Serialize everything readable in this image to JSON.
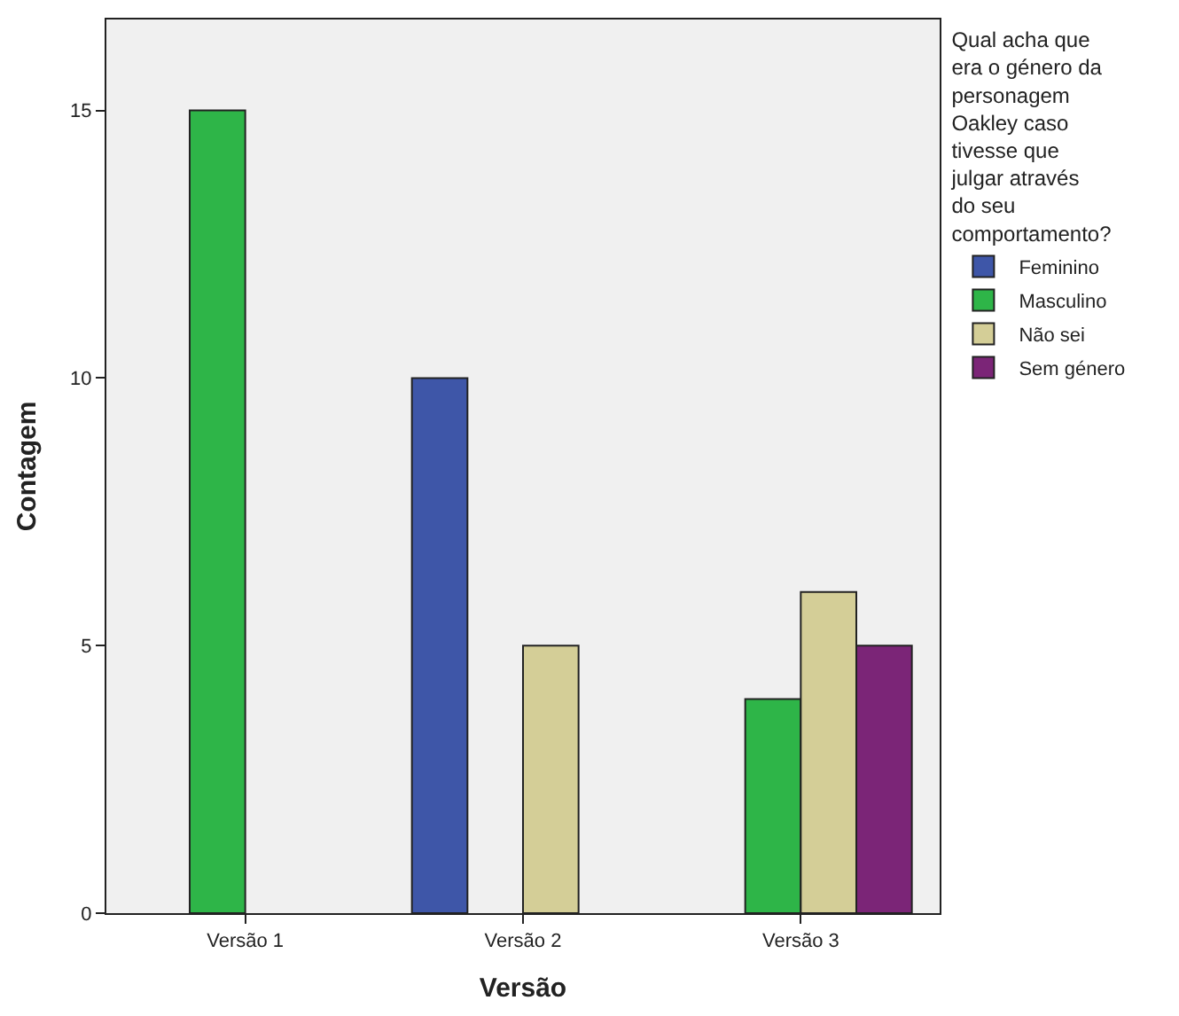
{
  "chart_data": {
    "type": "bar",
    "categories": [
      "Versão 1",
      "Versão 2",
      "Versão 3"
    ],
    "xlabel": "Versão",
    "ylabel": "Contagem",
    "legend_title": "Qual acha que era o género da personagem Oakley caso tivesse que julgar através do seu comportamento?",
    "series": [
      {
        "name": "Feminino",
        "color": "#3e56a8",
        "values": [
          null,
          10,
          null
        ]
      },
      {
        "name": "Masculino",
        "color": "#2eb548",
        "values": [
          15,
          null,
          4
        ]
      },
      {
        "name": "Não sei",
        "color": "#d4ce97",
        "values": [
          null,
          5,
          6
        ]
      },
      {
        "name": "Sem género",
        "color": "#7b2577",
        "values": [
          null,
          null,
          5
        ]
      }
    ],
    "ylim": [
      0,
      16.7
    ],
    "yticks": [
      0,
      5,
      10,
      15
    ],
    "grid": false,
    "legend": "right"
  }
}
